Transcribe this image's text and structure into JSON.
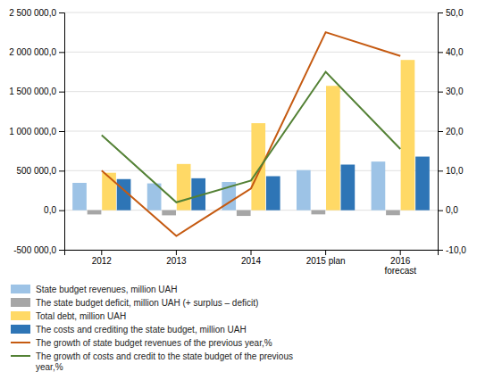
{
  "chart_data": {
    "type": "bar",
    "categories": [
      "2012",
      "2013",
      "2014",
      "2015 plan",
      "2016\nforecast"
    ],
    "series": [
      {
        "name": "State budget revenues, million UAH",
        "color": "#9dc3e6",
        "values": [
          346054,
          339180,
          357084,
          507169,
          615000
        ]
      },
      {
        "name": "The state budget deficit, million UAH (+ surplus – deficit)",
        "color": "#a6a6a6",
        "values": [
          -53441,
          -64707,
          -72052,
          -52664,
          -63000
        ]
      },
      {
        "name": "Total debt, million UAH",
        "color": "#ffd966",
        "values": [
          473500,
          584500,
          1100428,
          1572180,
          1900000
        ]
      },
      {
        "name": "The costs and crediting the state budget, million UAH",
        "color": "#2e75b6",
        "values": [
          393495,
          403855,
          430217,
          576963,
          678000
        ]
      },
      {
        "name": "The growth of state budget revenues of the previous year,%",
        "color": "#c55a11",
        "type": "line",
        "axis": "y2",
        "values": [
          10.0,
          -6.5,
          5.5,
          45.0,
          39.0
        ]
      },
      {
        "name": "The growth of costs and credit to the state budget of the previous\nyear,%",
        "color": "#538135",
        "type": "line",
        "axis": "y2",
        "values": [
          19.0,
          2.0,
          7.5,
          35.0,
          15.5
        ]
      }
    ],
    "ylim": [
      -500000,
      2500000
    ],
    "yticks": [
      {
        "value": -500000,
        "label": "-500 000,0"
      },
      {
        "value": 0,
        "label": "0,0"
      },
      {
        "value": 500000,
        "label": "500 000,0"
      },
      {
        "value": 1000000,
        "label": "1 000 000,0"
      },
      {
        "value": 1500000,
        "label": "1 500 000,0"
      },
      {
        "value": 2000000,
        "label": "2 000 000,0"
      },
      {
        "value": 2500000,
        "label": "2 500 000,0"
      }
    ],
    "y2lim": [
      -10,
      50
    ],
    "y2ticks": [
      {
        "value": -10,
        "label": "-10,0"
      },
      {
        "value": 0,
        "label": "0,0"
      },
      {
        "value": 10,
        "label": "10,0"
      },
      {
        "value": 20,
        "label": "20,0"
      },
      {
        "value": 30,
        "label": "30,0"
      },
      {
        "value": 40,
        "label": "40,0"
      },
      {
        "value": 50,
        "label": "50,0"
      }
    ],
    "grid": true,
    "legend": "bottom"
  }
}
